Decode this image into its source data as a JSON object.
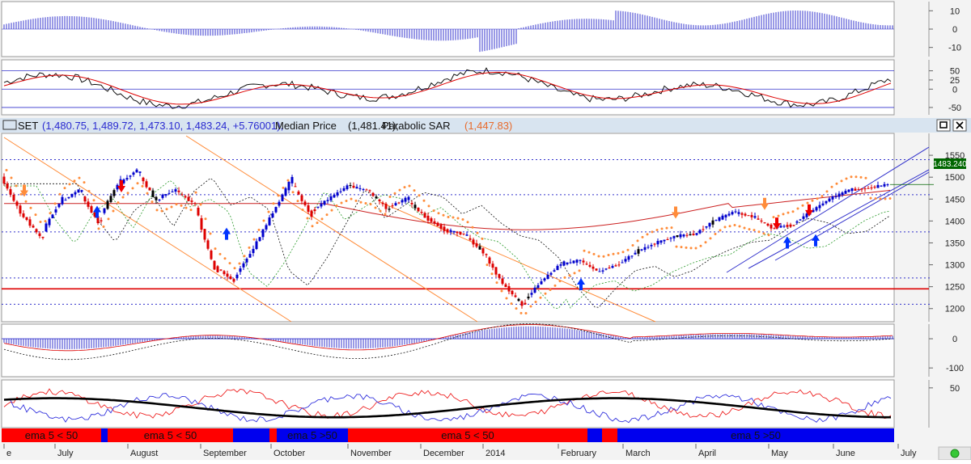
{
  "header": {
    "symbol": "SET",
    "ohlc_text": "(1,480.75, 1,489.72, 1,473.10, 1,483.24, +5.76001),",
    "median_label": "Median Price",
    "median_value": "(1,481.41),",
    "sar_label": "Parabolic SAR",
    "sar_value": "(1,447.83)",
    "last_price_badge": "1483.240",
    "maximize_icon": "maximize-icon",
    "close_icon": "close-icon"
  },
  "colors": {
    "up_bar": "#0000cc",
    "down_bar": "#dd0000",
    "neutral_bar": "#000000",
    "sar_dots": "#ff8c3a",
    "support_line": "#dd0000",
    "guide_line": "#3333cc",
    "regime_red": "#ff0000",
    "regime_blue": "#0000ee",
    "badge_bg": "#006600"
  },
  "months": [
    "e",
    "July",
    "August",
    "September",
    "October",
    "November",
    "December",
    "2014",
    "February",
    "March",
    "April",
    "May",
    "June",
    "July"
  ],
  "regimes": [
    {
      "label": "ema 5 < 50",
      "color": "red"
    },
    {
      "label": "",
      "color": "blue"
    },
    {
      "label": "ema 5 < 50",
      "color": "red"
    },
    {
      "label": "",
      "color": "blue"
    },
    {
      "label": "",
      "color": "red"
    },
    {
      "label": "ema 5 >50",
      "color": "blue"
    },
    {
      "label": "ema 5 < 50",
      "color": "red"
    },
    {
      "label": "",
      "color": "blue"
    },
    {
      "label": "",
      "color": "red"
    },
    {
      "label": "ema 5 >50",
      "color": "blue"
    }
  ],
  "chart_data": [
    {
      "type": "bar",
      "panel": "top-histogram",
      "ylim": [
        -15,
        15
      ],
      "yticks": [
        "10",
        "0",
        "-10"
      ]
    },
    {
      "type": "line",
      "panel": "oscillator",
      "ylim": [
        -70,
        80
      ],
      "yticks": [
        "50",
        "25",
        "0",
        "-50"
      ],
      "guides": [
        50,
        0,
        -50
      ]
    },
    {
      "type": "line",
      "panel": "price",
      "ylim": [
        1170,
        1600
      ],
      "yticks": [
        "1550",
        "1500",
        "1450",
        "1400",
        "1350",
        "1300",
        "1250",
        "1200"
      ],
      "levels": {
        "support": 1245,
        "dotted": [
          1540,
          1460,
          1375,
          1270,
          1210
        ]
      },
      "last": 1483.24,
      "series_points": [
        [
          "e",
          1500
        ],
        [
          "e",
          1420
        ],
        [
          "e",
          1365
        ],
        [
          "July",
          1440
        ],
        [
          "July",
          1470
        ],
        [
          "July",
          1400
        ],
        [
          "July",
          1480
        ],
        [
          "July",
          1515
        ],
        [
          "August",
          1450
        ],
        [
          "August",
          1470
        ],
        [
          "August",
          1440
        ],
        [
          "August",
          1300
        ],
        [
          "August",
          1265
        ],
        [
          "September",
          1330
        ],
        [
          "September",
          1410
        ],
        [
          "September",
          1490
        ],
        [
          "September",
          1420
        ],
        [
          "October",
          1450
        ],
        [
          "October",
          1480
        ],
        [
          "October",
          1470
        ],
        [
          "November",
          1430
        ],
        [
          "November",
          1450
        ],
        [
          "November",
          1410
        ],
        [
          "November",
          1380
        ],
        [
          "December",
          1370
        ],
        [
          "December",
          1330
        ],
        [
          "December",
          1260
        ],
        [
          "December",
          1210
        ],
        [
          "2014",
          1260
        ],
        [
          "2014",
          1300
        ],
        [
          "2014",
          1310
        ],
        [
          "February",
          1285
        ],
        [
          "February",
          1300
        ],
        [
          "February",
          1330
        ],
        [
          "March",
          1350
        ],
        [
          "March",
          1365
        ],
        [
          "March",
          1370
        ],
        [
          "April",
          1400
        ],
        [
          "April",
          1420
        ],
        [
          "April",
          1410
        ],
        [
          "May",
          1385
        ],
        [
          "May",
          1390
        ],
        [
          "May",
          1420
        ],
        [
          "June",
          1450
        ],
        [
          "June",
          1470
        ],
        [
          "June",
          1475
        ],
        [
          "June",
          1483.24
        ]
      ]
    },
    {
      "type": "bar",
      "panel": "macd",
      "ylim": [
        -130,
        50
      ],
      "yticks": [
        "0",
        "-100"
      ]
    },
    {
      "type": "line",
      "panel": "stochastic",
      "ylim": [
        0,
        60
      ],
      "yticks": [
        "50"
      ]
    }
  ]
}
